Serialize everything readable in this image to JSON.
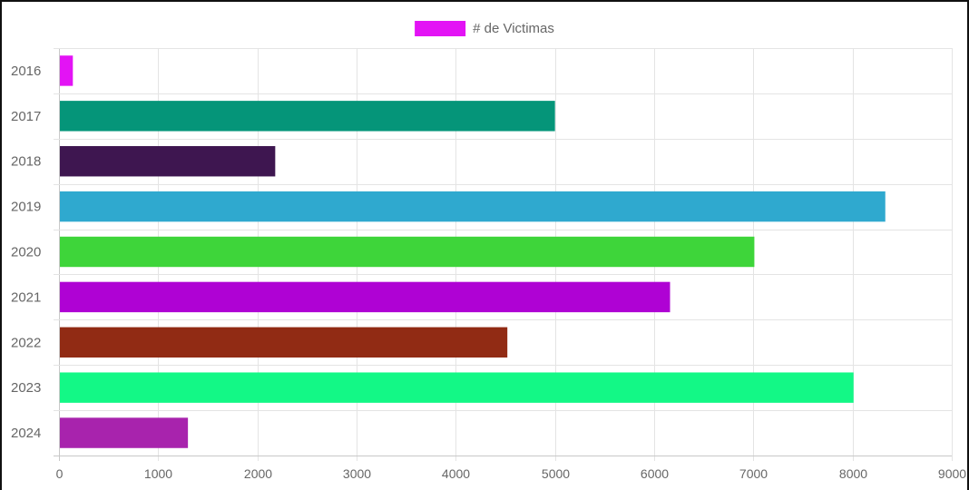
{
  "chart_data": {
    "type": "bar",
    "orientation": "horizontal",
    "categories": [
      "2016",
      "2017",
      "2018",
      "2019",
      "2020",
      "2021",
      "2022",
      "2023",
      "2024"
    ],
    "series": [
      {
        "name": "# de Victimas",
        "values": [
          140,
          5000,
          2180,
          8330,
          7010,
          6160,
          4520,
          8010,
          1300
        ],
        "colors": [
          "#e313f5",
          "#059579",
          "#3e1650",
          "#2fa9cf",
          "#3ed53a",
          "#af02d4",
          "#912b14",
          "#13f886",
          "#a823ad"
        ]
      }
    ],
    "xlim": [
      0,
      9000
    ],
    "xticks": [
      0,
      1000,
      2000,
      3000,
      4000,
      5000,
      6000,
      7000,
      8000,
      9000
    ],
    "grid": true,
    "legend": {
      "position": "top",
      "label": "# de Victimas",
      "color": "#e313f5"
    },
    "title": "",
    "xlabel": "",
    "ylabel": ""
  }
}
